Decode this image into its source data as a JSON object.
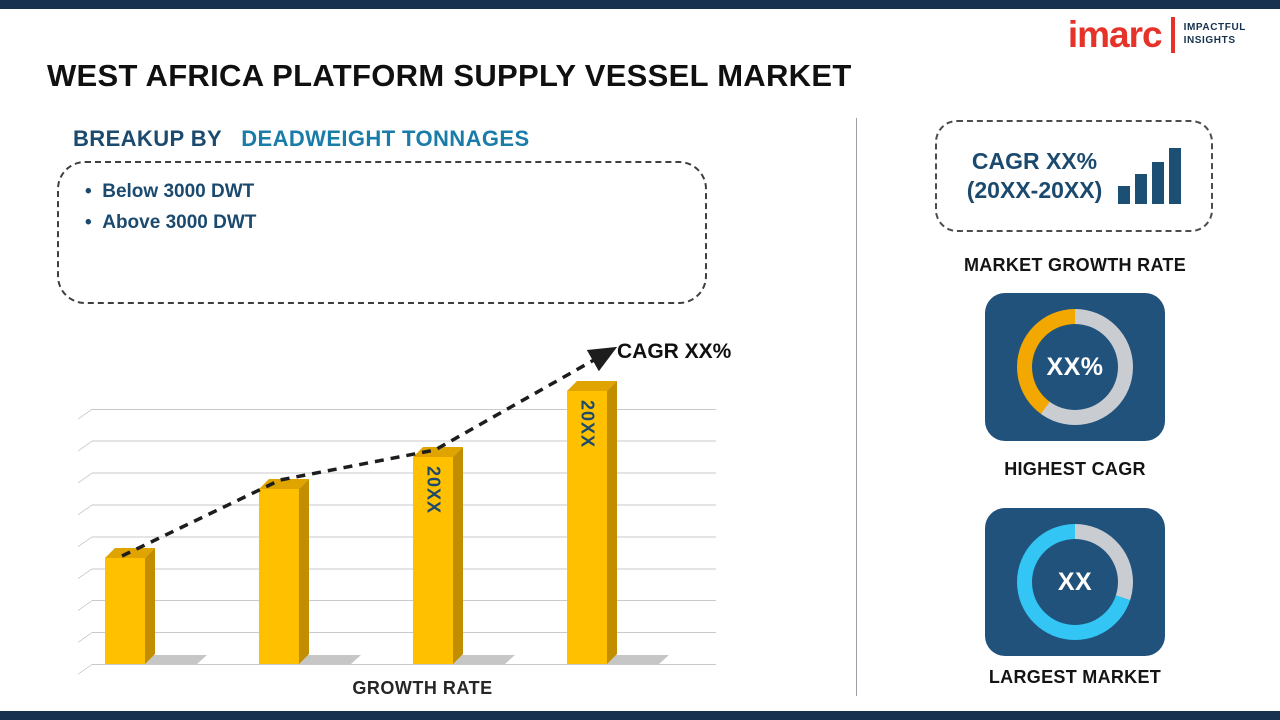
{
  "brand": {
    "name": "imarc",
    "tagline1": "IMPACTFUL",
    "tagline2": "INSIGHTS"
  },
  "title": "WEST AFRICA PLATFORM SUPPLY VESSEL MARKET",
  "breakup": {
    "prefix": "BREAKUP BY",
    "highlight": "DEADWEIGHT TONNAGES",
    "items": [
      "Below 3000 DWT",
      "Above 3000 DWT"
    ]
  },
  "chart_data": {
    "type": "bar",
    "title": "",
    "xlabel": "GROWTH RATE",
    "ylabel": "",
    "ylim": [
      0,
      100
    ],
    "grid": true,
    "legend": false,
    "categories": [
      "",
      "",
      "20XX",
      "20XX"
    ],
    "values": [
      37,
      61,
      72,
      95
    ],
    "bar_color": "#FFC000",
    "trend_line": true,
    "trend_annotation": "CAGR XX%"
  },
  "sidebar": {
    "growth_box": {
      "line1": "CAGR XX%",
      "line2": "(20XX-20XX)"
    },
    "market_growth_label": "MARKET GROWTH RATE",
    "tiles": [
      {
        "center": "XX%",
        "label": "HIGHEST CAGR",
        "arc_color": "#F2A800",
        "arc_percent": 40
      },
      {
        "center": "XX",
        "label": "LARGEST MARKET",
        "arc_color": "#33C5F3",
        "arc_percent": 70
      }
    ]
  },
  "colors": {
    "navy_strip": "#16324E",
    "navy_text": "#1B4A6E",
    "teal_highlight": "#1A7CA8",
    "bar_yellow": "#FFC000",
    "tile_navy": "#20527C",
    "donut_gray": "#C9CDD2",
    "brand_red": "#E6332A"
  }
}
